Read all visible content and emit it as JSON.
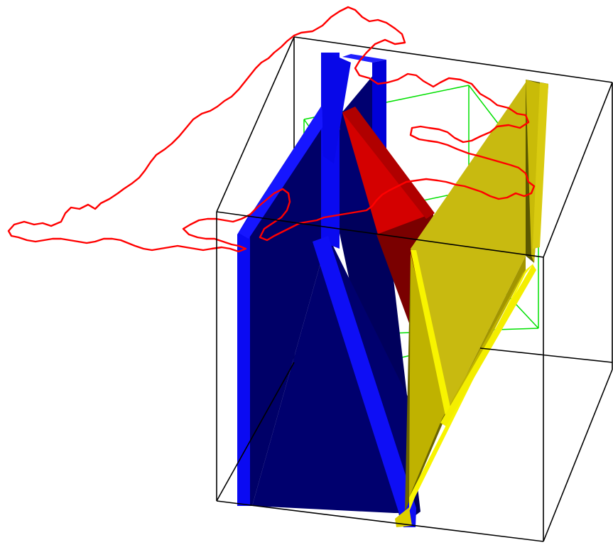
{
  "colors": {
    "background": "#ffffff",
    "bounding_box": "#000000",
    "inner_box": "#00e000",
    "coastline": "#ff0000",
    "plane_blue_front": "#0000f2",
    "plane_blue_dark": "#000066",
    "plane_blue_edge": "#1414ff",
    "plane_red": "#d40000",
    "plane_red_dark": "#6e0000",
    "plane_yellow": "#c9b90a",
    "plane_yellow_dark": "#5e5a00",
    "plane_yellow_edge": "#f8f400"
  },
  "scene": {
    "objects": [
      "outer-bounding-box",
      "inner-bounding-box",
      "blue-fault-plane",
      "red-fault-plane",
      "yellow-fault-plane",
      "coastline-outline"
    ]
  }
}
